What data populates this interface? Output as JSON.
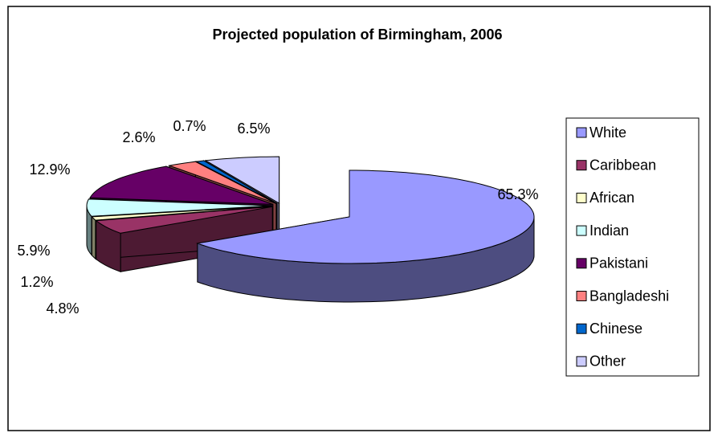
{
  "chart_data": {
    "type": "pie",
    "title": "Projected population of Birmingham, 2006",
    "categories": [
      "White",
      "Caribbean",
      "African",
      "Indian",
      "Pakistani",
      "Bangladeshi",
      "Chinese",
      "Other"
    ],
    "values": [
      65.3,
      4.8,
      1.2,
      5.9,
      12.9,
      2.6,
      0.7,
      6.5
    ],
    "value_labels": [
      "65.3%",
      "4.8%",
      "1.2%",
      "5.9%",
      "12.9%",
      "2.6%",
      "0.7%",
      "6.5%"
    ],
    "colors": [
      "#9999ff",
      "#993366",
      "#ffffcc",
      "#ccffff",
      "#660066",
      "#ff8080",
      "#0066cc",
      "#ccccff"
    ],
    "legend": "right"
  }
}
